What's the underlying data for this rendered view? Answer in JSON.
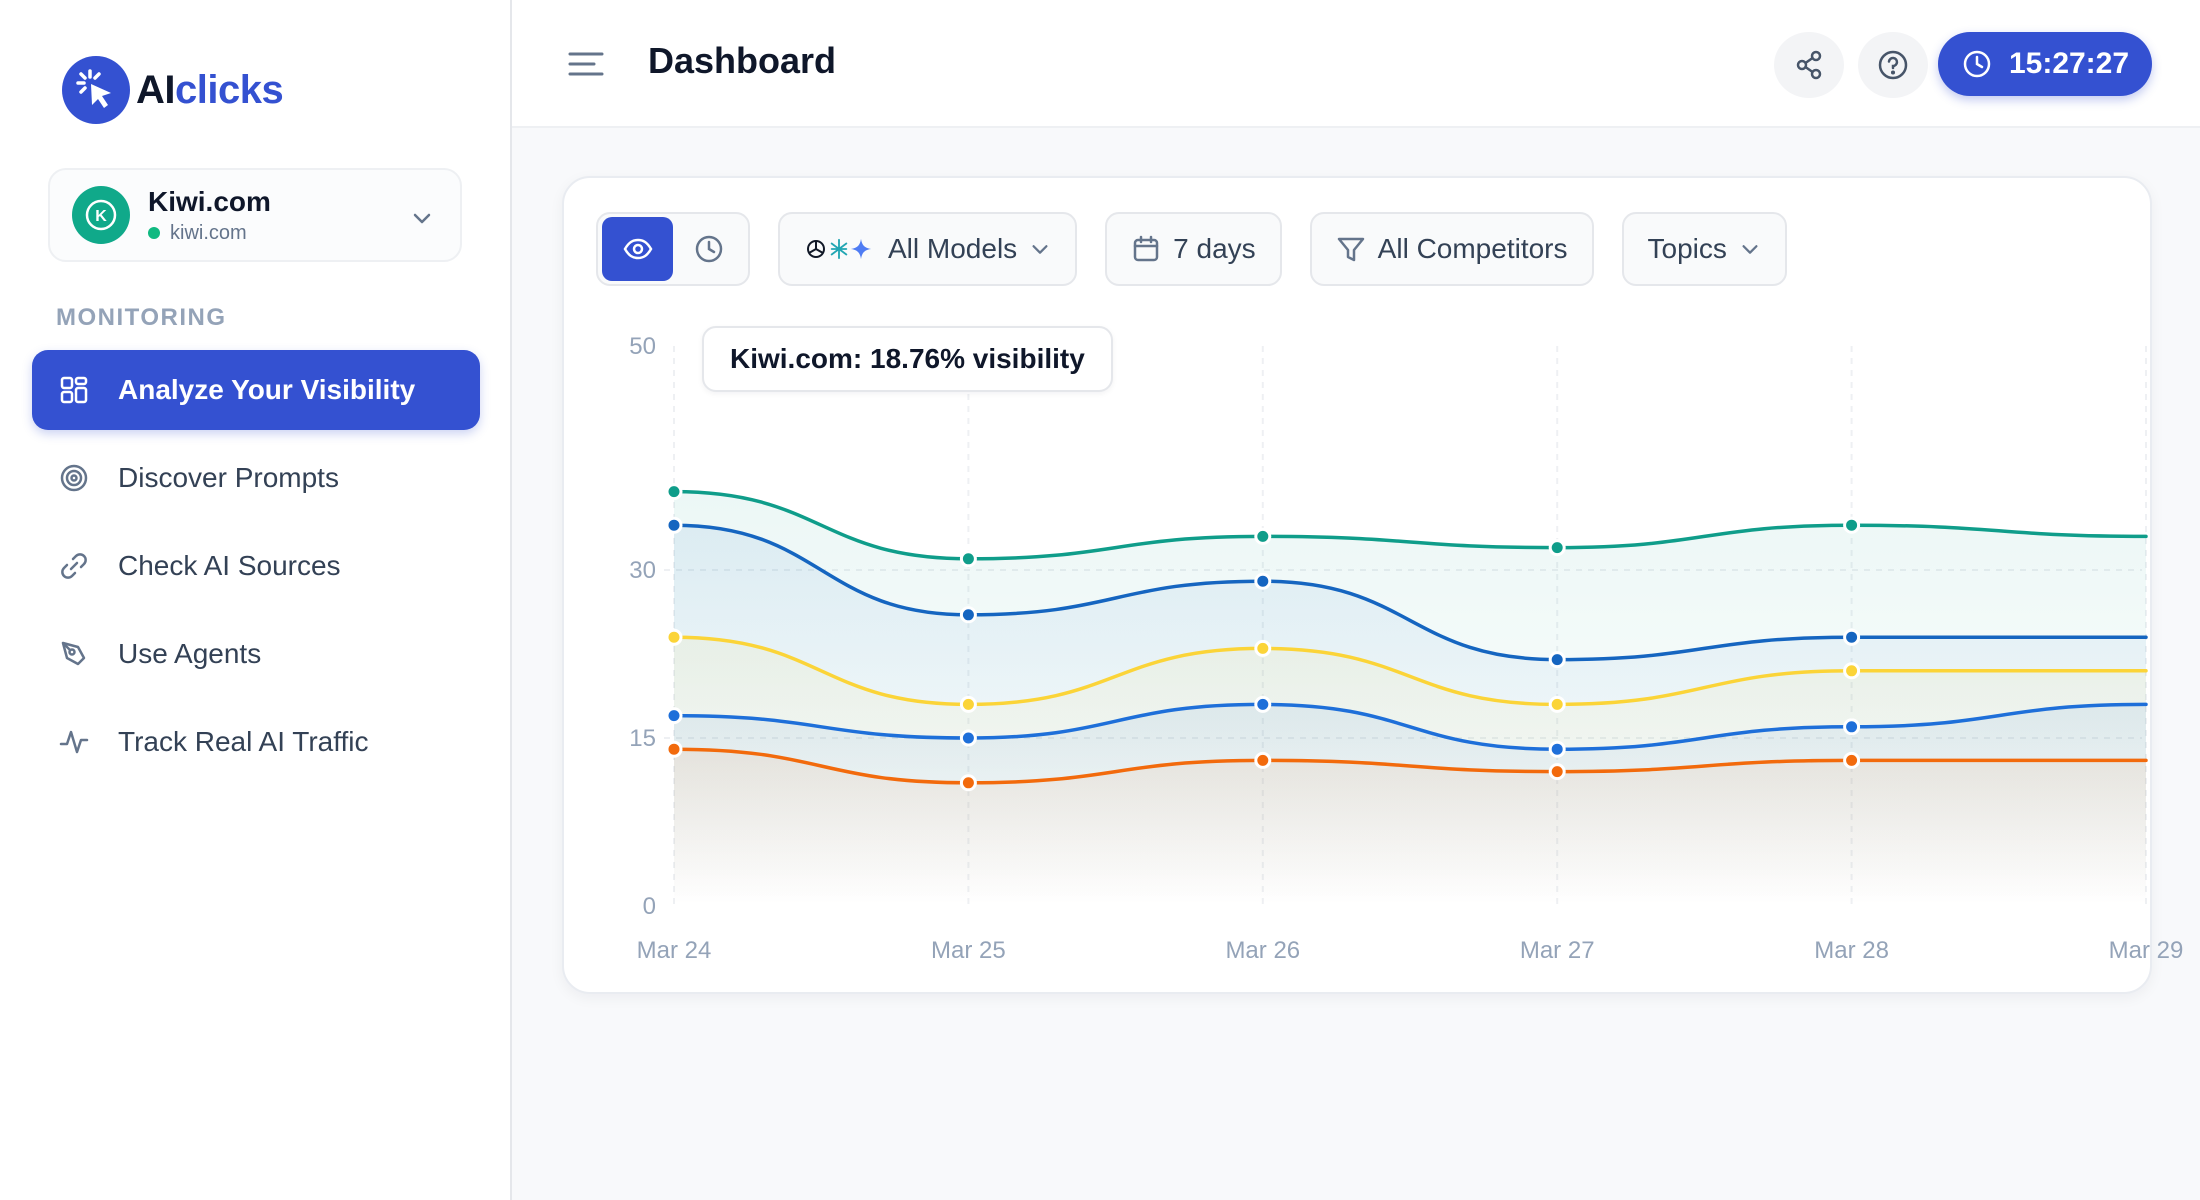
{
  "app": {
    "brand_ai": "AI",
    "brand_clicks": "clicks",
    "accent": "#3451d1"
  },
  "account": {
    "name": "Kiwi.com",
    "domain": "kiwi.com",
    "avatar_letter": "K"
  },
  "sidebar": {
    "section_label": "MONITORING",
    "items": [
      {
        "label": "Analyze Your Visibility",
        "icon": "grid-icon",
        "active": true
      },
      {
        "label": "Discover Prompts",
        "icon": "target-icon",
        "active": false
      },
      {
        "label": "Check AI Sources",
        "icon": "link-icon",
        "active": false
      },
      {
        "label": "Use Agents",
        "icon": "pen-tool-icon",
        "active": false
      },
      {
        "label": "Track Real AI Traffic",
        "icon": "activity-icon",
        "active": false
      }
    ]
  },
  "header": {
    "title": "Dashboard",
    "timer": "15:27:27"
  },
  "filters": {
    "models": "All Models",
    "range": "7 days",
    "competitors": "All Competitors",
    "topics": "Topics"
  },
  "tooltip": {
    "text": "Kiwi.com: 18.76% visibility"
  },
  "chart_data": {
    "type": "area",
    "categories": [
      "Mar 24",
      "Mar 25",
      "Mar 26",
      "Mar 27",
      "Mar 28",
      "Mar 29"
    ],
    "ylim": [
      0,
      50
    ],
    "yticks": [
      "0",
      "15",
      "30",
      "50"
    ],
    "grid": true,
    "series": [
      {
        "color": "#0f9d8a",
        "values": [
          37,
          31,
          33,
          32,
          34,
          33
        ]
      },
      {
        "color": "#1565c0",
        "values": [
          34,
          26,
          29,
          22,
          24,
          24
        ]
      },
      {
        "color": "#fbd438",
        "values": [
          24,
          18,
          23,
          18,
          21,
          21
        ]
      },
      {
        "color": "#1e6fd9",
        "values": [
          17,
          15,
          18,
          14,
          16,
          18
        ]
      },
      {
        "color": "#f26a0c",
        "values": [
          14,
          11,
          13,
          12,
          13,
          13
        ]
      }
    ]
  }
}
